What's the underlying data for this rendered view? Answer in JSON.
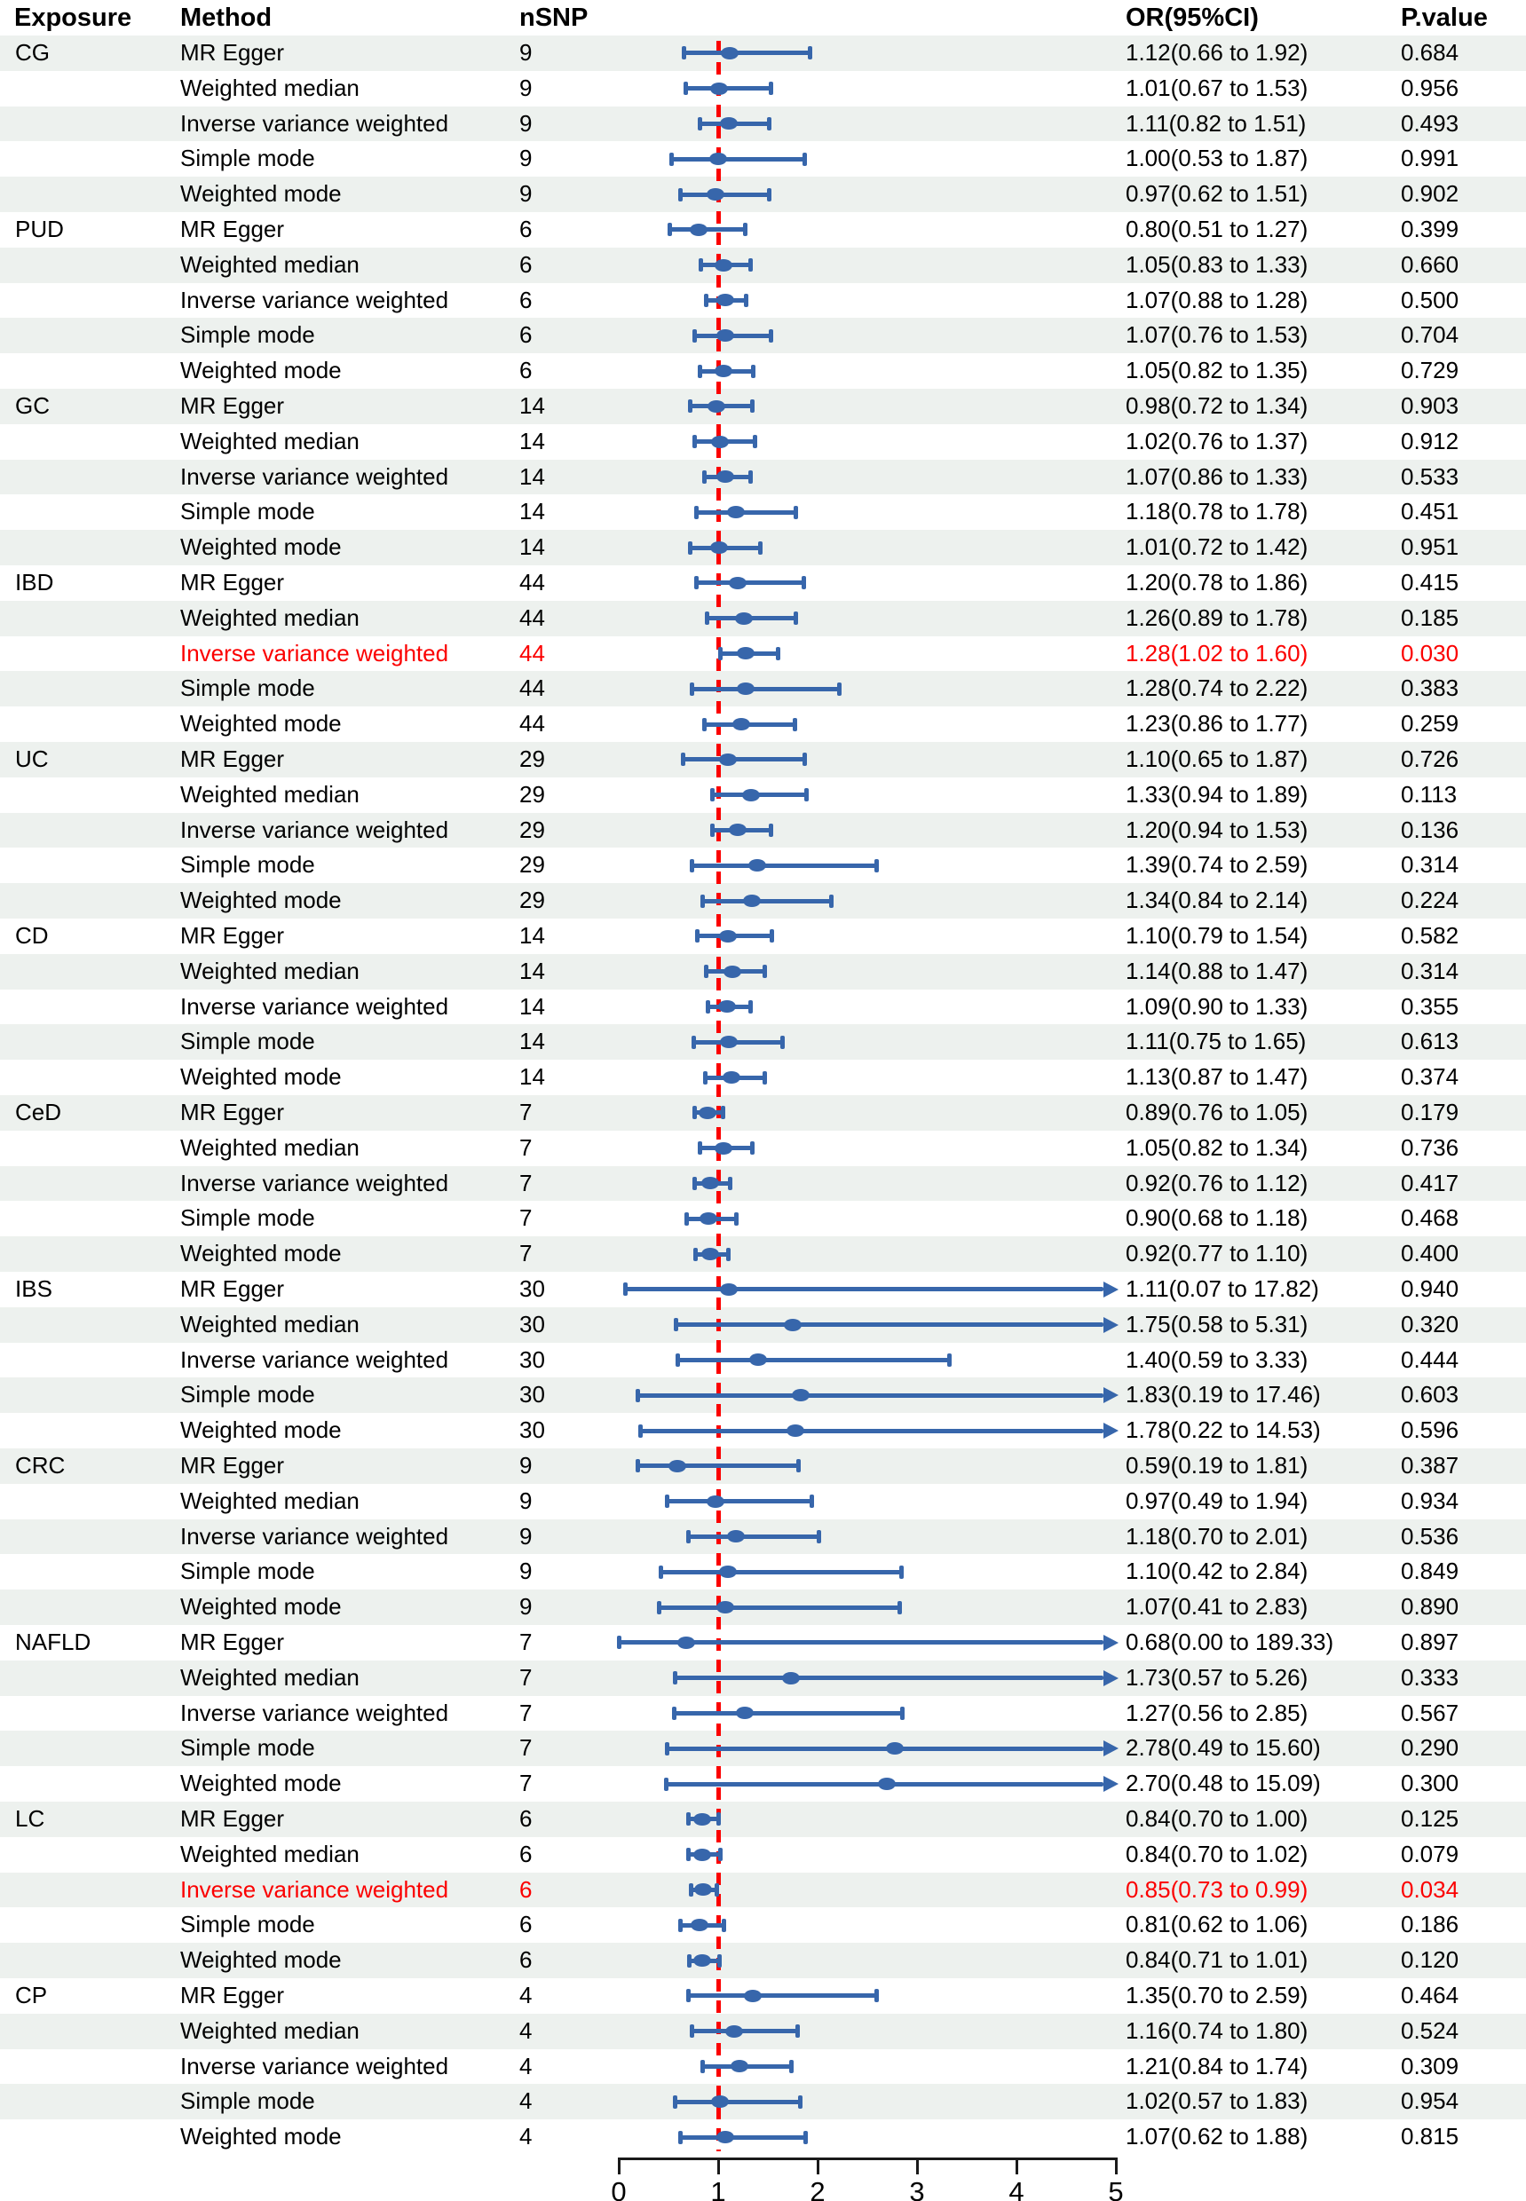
{
  "chart_data": {
    "type": "forest",
    "columns": {
      "exposure": "Exposure",
      "method": "Method",
      "nsnp": "nSNP",
      "or_ci": "OR(95%CI)",
      "p": "P.value"
    },
    "axis": {
      "xlim": [
        0,
        5
      ],
      "ticks": [
        "0",
        "1",
        "2",
        "3",
        "4",
        "5"
      ],
      "reference_line": 1
    },
    "colors": {
      "marker_blue": "#3766ab",
      "reference_red": "#fb0000",
      "stripe": "#edf1ee",
      "highlight_text": "#fb0000"
    },
    "legend": {
      "grid": "off",
      "note": "rows with highlight=true are drawn in red"
    },
    "groups": [
      {
        "exposure": "CG",
        "rows": [
          {
            "method": "MR Egger",
            "nsnp": "9",
            "or": 1.12,
            "lo": 0.66,
            "hi": 1.92,
            "or_text": "1.12(0.66 to 1.92)",
            "p": "0.684",
            "highlight": false
          },
          {
            "method": "Weighted median",
            "nsnp": "9",
            "or": 1.01,
            "lo": 0.67,
            "hi": 1.53,
            "or_text": "1.01(0.67 to 1.53)",
            "p": "0.956",
            "highlight": false
          },
          {
            "method": "Inverse variance weighted",
            "nsnp": "9",
            "or": 1.11,
            "lo": 0.82,
            "hi": 1.51,
            "or_text": "1.11(0.82 to 1.51)",
            "p": "0.493",
            "highlight": false
          },
          {
            "method": "Simple mode",
            "nsnp": "9",
            "or": 1.0,
            "lo": 0.53,
            "hi": 1.87,
            "or_text": "1.00(0.53 to 1.87)",
            "p": "0.991",
            "highlight": false
          },
          {
            "method": "Weighted mode",
            "nsnp": "9",
            "or": 0.97,
            "lo": 0.62,
            "hi": 1.51,
            "or_text": "0.97(0.62 to 1.51)",
            "p": "0.902",
            "highlight": false
          }
        ]
      },
      {
        "exposure": "PUD",
        "rows": [
          {
            "method": "MR Egger",
            "nsnp": "6",
            "or": 0.8,
            "lo": 0.51,
            "hi": 1.27,
            "or_text": "0.80(0.51 to 1.27)",
            "p": "0.399",
            "highlight": false
          },
          {
            "method": "Weighted median",
            "nsnp": "6",
            "or": 1.05,
            "lo": 0.83,
            "hi": 1.33,
            "or_text": "1.05(0.83 to 1.33)",
            "p": "0.660",
            "highlight": false
          },
          {
            "method": "Inverse variance weighted",
            "nsnp": "6",
            "or": 1.07,
            "lo": 0.88,
            "hi": 1.28,
            "or_text": "1.07(0.88 to 1.28)",
            "p": "0.500",
            "highlight": false
          },
          {
            "method": "Simple mode",
            "nsnp": "6",
            "or": 1.07,
            "lo": 0.76,
            "hi": 1.53,
            "or_text": "1.07(0.76 to 1.53)",
            "p": "0.704",
            "highlight": false
          },
          {
            "method": "Weighted mode",
            "nsnp": "6",
            "or": 1.05,
            "lo": 0.82,
            "hi": 1.35,
            "or_text": "1.05(0.82 to 1.35)",
            "p": "0.729",
            "highlight": false
          }
        ]
      },
      {
        "exposure": "GC",
        "rows": [
          {
            "method": "MR Egger",
            "nsnp": "14",
            "or": 0.98,
            "lo": 0.72,
            "hi": 1.34,
            "or_text": "0.98(0.72 to 1.34)",
            "p": "0.903",
            "highlight": false
          },
          {
            "method": "Weighted median",
            "nsnp": "14",
            "or": 1.02,
            "lo": 0.76,
            "hi": 1.37,
            "or_text": "1.02(0.76 to 1.37)",
            "p": "0.912",
            "highlight": false
          },
          {
            "method": "Inverse variance weighted",
            "nsnp": "14",
            "or": 1.07,
            "lo": 0.86,
            "hi": 1.33,
            "or_text": "1.07(0.86 to 1.33)",
            "p": "0.533",
            "highlight": false
          },
          {
            "method": "Simple mode",
            "nsnp": "14",
            "or": 1.18,
            "lo": 0.78,
            "hi": 1.78,
            "or_text": "1.18(0.78 to 1.78)",
            "p": "0.451",
            "highlight": false
          },
          {
            "method": "Weighted mode",
            "nsnp": "14",
            "or": 1.01,
            "lo": 0.72,
            "hi": 1.42,
            "or_text": "1.01(0.72 to 1.42)",
            "p": "0.951",
            "highlight": false
          }
        ]
      },
      {
        "exposure": "IBD",
        "rows": [
          {
            "method": "MR Egger",
            "nsnp": "44",
            "or": 1.2,
            "lo": 0.78,
            "hi": 1.86,
            "or_text": "1.20(0.78 to 1.86)",
            "p": "0.415",
            "highlight": false
          },
          {
            "method": "Weighted median",
            "nsnp": "44",
            "or": 1.26,
            "lo": 0.89,
            "hi": 1.78,
            "or_text": "1.26(0.89 to 1.78)",
            "p": "0.185",
            "highlight": false
          },
          {
            "method": "Inverse variance weighted",
            "nsnp": "44",
            "or": 1.28,
            "lo": 1.02,
            "hi": 1.6,
            "or_text": "1.28(1.02 to 1.60)",
            "p": "0.030",
            "highlight": true
          },
          {
            "method": "Simple mode",
            "nsnp": "44",
            "or": 1.28,
            "lo": 0.74,
            "hi": 2.22,
            "or_text": "1.28(0.74 to 2.22)",
            "p": "0.383",
            "highlight": false
          },
          {
            "method": "Weighted mode",
            "nsnp": "44",
            "or": 1.23,
            "lo": 0.86,
            "hi": 1.77,
            "or_text": "1.23(0.86 to 1.77)",
            "p": "0.259",
            "highlight": false
          }
        ]
      },
      {
        "exposure": "UC",
        "rows": [
          {
            "method": "MR Egger",
            "nsnp": "29",
            "or": 1.1,
            "lo": 0.65,
            "hi": 1.87,
            "or_text": "1.10(0.65 to 1.87)",
            "p": "0.726",
            "highlight": false
          },
          {
            "method": "Weighted median",
            "nsnp": "29",
            "or": 1.33,
            "lo": 0.94,
            "hi": 1.89,
            "or_text": "1.33(0.94 to 1.89)",
            "p": "0.113",
            "highlight": false
          },
          {
            "method": "Inverse variance weighted",
            "nsnp": "29",
            "or": 1.2,
            "lo": 0.94,
            "hi": 1.53,
            "or_text": "1.20(0.94 to 1.53)",
            "p": "0.136",
            "highlight": false
          },
          {
            "method": "Simple mode",
            "nsnp": "29",
            "or": 1.39,
            "lo": 0.74,
            "hi": 2.59,
            "or_text": "1.39(0.74 to 2.59)",
            "p": "0.314",
            "highlight": false
          },
          {
            "method": "Weighted mode",
            "nsnp": "29",
            "or": 1.34,
            "lo": 0.84,
            "hi": 2.14,
            "or_text": "1.34(0.84 to 2.14)",
            "p": "0.224",
            "highlight": false
          }
        ]
      },
      {
        "exposure": "CD",
        "rows": [
          {
            "method": "MR Egger",
            "nsnp": "14",
            "or": 1.1,
            "lo": 0.79,
            "hi": 1.54,
            "or_text": "1.10(0.79 to 1.54)",
            "p": "0.582",
            "highlight": false
          },
          {
            "method": "Weighted median",
            "nsnp": "14",
            "or": 1.14,
            "lo": 0.88,
            "hi": 1.47,
            "or_text": "1.14(0.88 to 1.47)",
            "p": "0.314",
            "highlight": false
          },
          {
            "method": "Inverse variance weighted",
            "nsnp": "14",
            "or": 1.09,
            "lo": 0.9,
            "hi": 1.33,
            "or_text": "1.09(0.90 to 1.33)",
            "p": "0.355",
            "highlight": false
          },
          {
            "method": "Simple mode",
            "nsnp": "14",
            "or": 1.11,
            "lo": 0.75,
            "hi": 1.65,
            "or_text": "1.11(0.75 to 1.65)",
            "p": "0.613",
            "highlight": false
          },
          {
            "method": "Weighted mode",
            "nsnp": "14",
            "or": 1.13,
            "lo": 0.87,
            "hi": 1.47,
            "or_text": "1.13(0.87 to 1.47)",
            "p": "0.374",
            "highlight": false
          }
        ]
      },
      {
        "exposure": "CeD",
        "rows": [
          {
            "method": "MR Egger",
            "nsnp": "7",
            "or": 0.89,
            "lo": 0.76,
            "hi": 1.05,
            "or_text": "0.89(0.76 to 1.05)",
            "p": "0.179",
            "highlight": false
          },
          {
            "method": "Weighted median",
            "nsnp": "7",
            "or": 1.05,
            "lo": 0.82,
            "hi": 1.34,
            "or_text": "1.05(0.82 to 1.34)",
            "p": "0.736",
            "highlight": false
          },
          {
            "method": "Inverse variance weighted",
            "nsnp": "7",
            "or": 0.92,
            "lo": 0.76,
            "hi": 1.12,
            "or_text": "0.92(0.76 to 1.12)",
            "p": "0.417",
            "highlight": false
          },
          {
            "method": "Simple mode",
            "nsnp": "7",
            "or": 0.9,
            "lo": 0.68,
            "hi": 1.18,
            "or_text": "0.90(0.68 to 1.18)",
            "p": "0.468",
            "highlight": false
          },
          {
            "method": "Weighted mode",
            "nsnp": "7",
            "or": 0.92,
            "lo": 0.77,
            "hi": 1.1,
            "or_text": "0.92(0.77 to 1.10)",
            "p": "0.400",
            "highlight": false
          }
        ]
      },
      {
        "exposure": "IBS",
        "rows": [
          {
            "method": "MR Egger",
            "nsnp": "30",
            "or": 1.11,
            "lo": 0.07,
            "hi": 17.82,
            "or_text": "1.11(0.07 to 17.82)",
            "p": "0.940",
            "highlight": false
          },
          {
            "method": "Weighted median",
            "nsnp": "30",
            "or": 1.75,
            "lo": 0.58,
            "hi": 5.31,
            "or_text": "1.75(0.58 to 5.31)",
            "p": "0.320",
            "highlight": false
          },
          {
            "method": "Inverse variance weighted",
            "nsnp": "30",
            "or": 1.4,
            "lo": 0.59,
            "hi": 3.33,
            "or_text": "1.40(0.59 to 3.33)",
            "p": "0.444",
            "highlight": false
          },
          {
            "method": "Simple mode",
            "nsnp": "30",
            "or": 1.83,
            "lo": 0.19,
            "hi": 17.46,
            "or_text": "1.83(0.19 to 17.46)",
            "p": "0.603",
            "highlight": false
          },
          {
            "method": "Weighted mode",
            "nsnp": "30",
            "or": 1.78,
            "lo": 0.22,
            "hi": 14.53,
            "or_text": "1.78(0.22 to 14.53)",
            "p": "0.596",
            "highlight": false
          }
        ]
      },
      {
        "exposure": "CRC",
        "rows": [
          {
            "method": "MR Egger",
            "nsnp": "9",
            "or": 0.59,
            "lo": 0.19,
            "hi": 1.81,
            "or_text": "0.59(0.19 to 1.81)",
            "p": "0.387",
            "highlight": false
          },
          {
            "method": "Weighted median",
            "nsnp": "9",
            "or": 0.97,
            "lo": 0.49,
            "hi": 1.94,
            "or_text": "0.97(0.49 to 1.94)",
            "p": "0.934",
            "highlight": false
          },
          {
            "method": "Inverse variance weighted",
            "nsnp": "9",
            "or": 1.18,
            "lo": 0.7,
            "hi": 2.01,
            "or_text": "1.18(0.70 to 2.01)",
            "p": "0.536",
            "highlight": false
          },
          {
            "method": "Simple mode",
            "nsnp": "9",
            "or": 1.1,
            "lo": 0.42,
            "hi": 2.84,
            "or_text": "1.10(0.42 to 2.84)",
            "p": "0.849",
            "highlight": false
          },
          {
            "method": "Weighted mode",
            "nsnp": "9",
            "or": 1.07,
            "lo": 0.41,
            "hi": 2.83,
            "or_text": "1.07(0.41 to 2.83)",
            "p": "0.890",
            "highlight": false
          }
        ]
      },
      {
        "exposure": "NAFLD",
        "rows": [
          {
            "method": "MR Egger",
            "nsnp": "7",
            "or": 0.68,
            "lo": 0.0,
            "hi": 189.33,
            "or_text": "0.68(0.00 to 189.33)",
            "p": "0.897",
            "highlight": false
          },
          {
            "method": "Weighted median",
            "nsnp": "7",
            "or": 1.73,
            "lo": 0.57,
            "hi": 5.26,
            "or_text": "1.73(0.57 to 5.26)",
            "p": "0.333",
            "highlight": false
          },
          {
            "method": "Inverse variance weighted",
            "nsnp": "7",
            "or": 1.27,
            "lo": 0.56,
            "hi": 2.85,
            "or_text": "1.27(0.56 to 2.85)",
            "p": "0.567",
            "highlight": false
          },
          {
            "method": "Simple mode",
            "nsnp": "7",
            "or": 2.78,
            "lo": 0.49,
            "hi": 15.6,
            "or_text": "2.78(0.49 to 15.60)",
            "p": "0.290",
            "highlight": false
          },
          {
            "method": "Weighted mode",
            "nsnp": "7",
            "or": 2.7,
            "lo": 0.48,
            "hi": 15.09,
            "or_text": "2.70(0.48 to 15.09)",
            "p": "0.300",
            "highlight": false
          }
        ]
      },
      {
        "exposure": "LC",
        "rows": [
          {
            "method": "MR Egger",
            "nsnp": "6",
            "or": 0.84,
            "lo": 0.7,
            "hi": 1.0,
            "or_text": "0.84(0.70 to 1.00)",
            "p": "0.125",
            "highlight": false
          },
          {
            "method": "Weighted median",
            "nsnp": "6",
            "or": 0.84,
            "lo": 0.7,
            "hi": 1.02,
            "or_text": "0.84(0.70 to 1.02)",
            "p": "0.079",
            "highlight": false
          },
          {
            "method": "Inverse variance weighted",
            "nsnp": "6",
            "or": 0.85,
            "lo": 0.73,
            "hi": 0.99,
            "or_text": "0.85(0.73 to 0.99)",
            "p": "0.034",
            "highlight": true
          },
          {
            "method": "Simple mode",
            "nsnp": "6",
            "or": 0.81,
            "lo": 0.62,
            "hi": 1.06,
            "or_text": "0.81(0.62 to 1.06)",
            "p": "0.186",
            "highlight": false
          },
          {
            "method": "Weighted mode",
            "nsnp": "6",
            "or": 0.84,
            "lo": 0.71,
            "hi": 1.01,
            "or_text": "0.84(0.71 to 1.01)",
            "p": "0.120",
            "highlight": false
          }
        ]
      },
      {
        "exposure": "CP",
        "rows": [
          {
            "method": "MR Egger",
            "nsnp": "4",
            "or": 1.35,
            "lo": 0.7,
            "hi": 2.59,
            "or_text": "1.35(0.70 to 2.59)",
            "p": "0.464",
            "highlight": false
          },
          {
            "method": "Weighted median",
            "nsnp": "4",
            "or": 1.16,
            "lo": 0.74,
            "hi": 1.8,
            "or_text": "1.16(0.74 to 1.80)",
            "p": "0.524",
            "highlight": false
          },
          {
            "method": "Inverse variance weighted",
            "nsnp": "4",
            "or": 1.21,
            "lo": 0.84,
            "hi": 1.74,
            "or_text": "1.21(0.84 to 1.74)",
            "p": "0.309",
            "highlight": false
          },
          {
            "method": "Simple mode",
            "nsnp": "4",
            "or": 1.02,
            "lo": 0.57,
            "hi": 1.83,
            "or_text": "1.02(0.57 to 1.83)",
            "p": "0.954",
            "highlight": false
          },
          {
            "method": "Weighted mode",
            "nsnp": "4",
            "or": 1.07,
            "lo": 0.62,
            "hi": 1.88,
            "or_text": "1.07(0.62 to 1.88)",
            "p": "0.815",
            "highlight": false
          }
        ]
      }
    ]
  }
}
